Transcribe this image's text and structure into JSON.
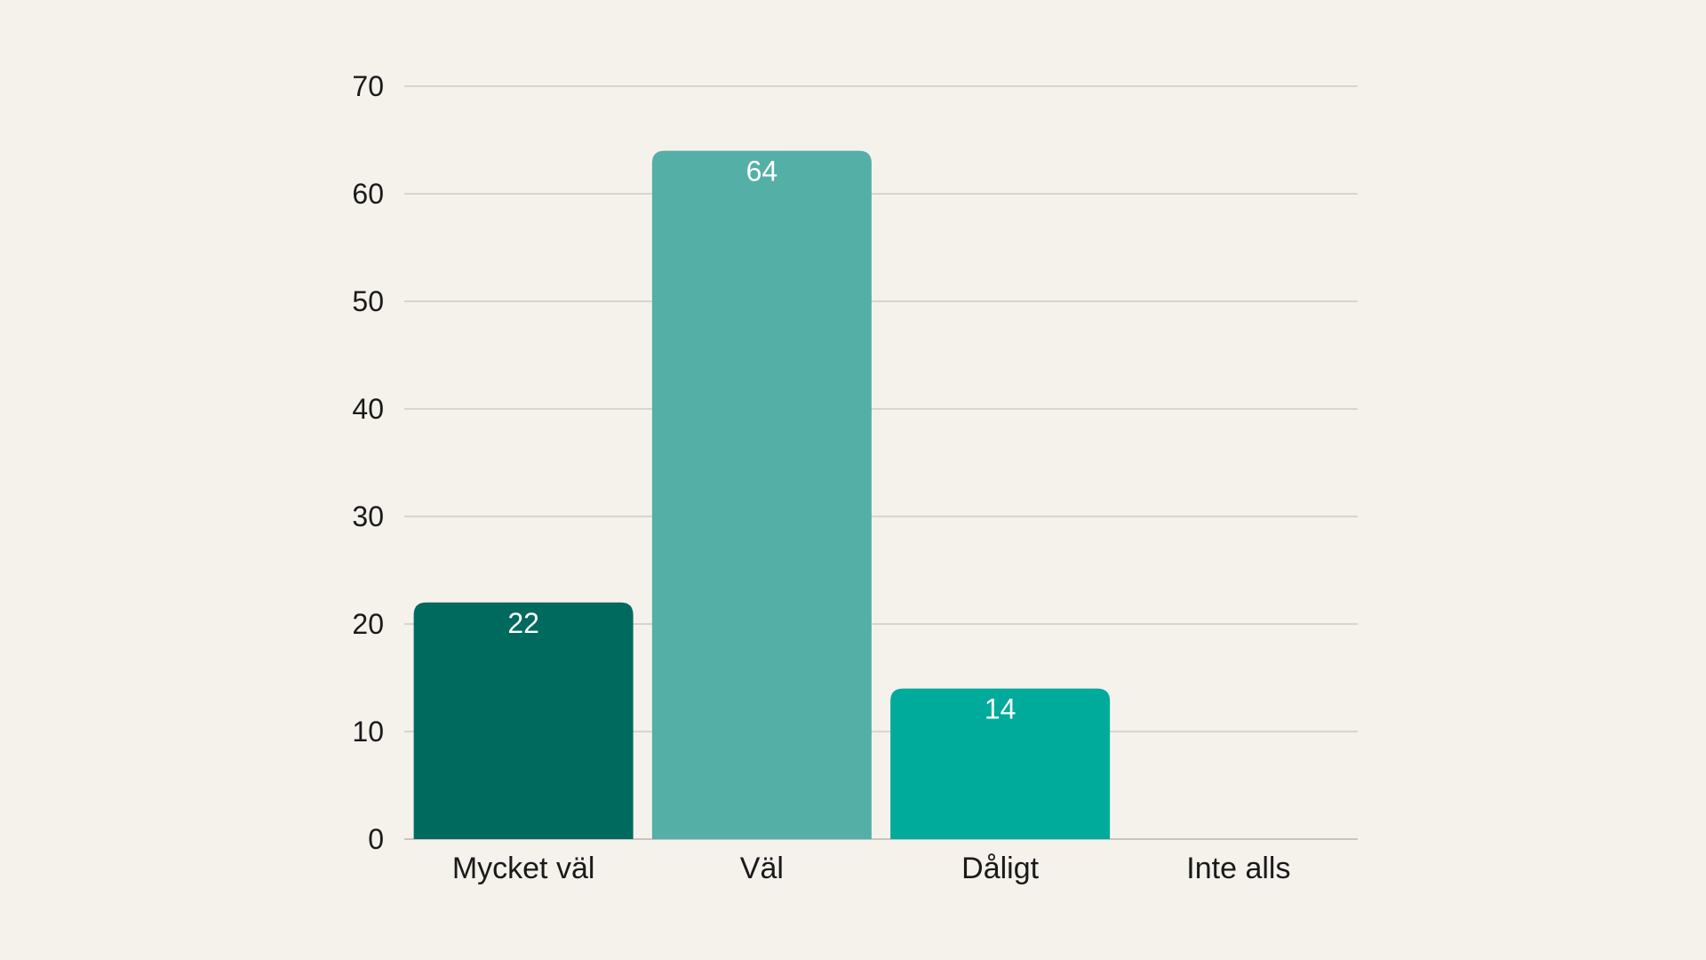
{
  "chart_data": {
    "type": "bar",
    "title": "",
    "xlabel": "",
    "ylabel": "",
    "categories": [
      "Mycket väl",
      "Väl",
      "Dåligt",
      "Inte alls"
    ],
    "values": [
      22,
      64,
      14,
      0
    ],
    "data_labels": [
      "22",
      "64",
      "14",
      ""
    ],
    "colors": [
      "#006a5f",
      "#54afa7",
      "#00ab9b",
      "#00ab9b"
    ],
    "ylim": [
      0,
      70
    ],
    "yticks": [
      0,
      10,
      20,
      30,
      40,
      50,
      60,
      70
    ],
    "grid": true,
    "legend": "none"
  },
  "style": {
    "background": "#f5f2ec",
    "grid_color": "#cfcbc4",
    "text_color": "#1a1a1a",
    "data_label_color": "#ffffff"
  }
}
